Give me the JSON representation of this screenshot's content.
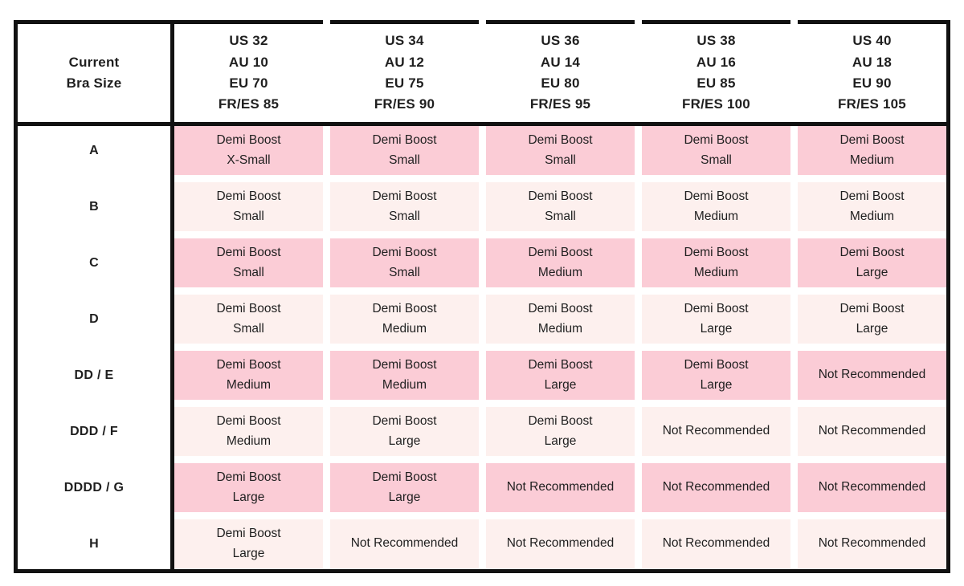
{
  "colors": {
    "border": "#111111",
    "text": "#1f1f1f",
    "row_pink": "#fbccd6",
    "row_light_pink": "#fdf0ee",
    "background": "#ffffff"
  },
  "chart_data": {
    "type": "table",
    "corner_label": "Current\nBra Size",
    "columns": [
      "US 32\nAU 10\nEU 70\nFR/ES 85",
      "US 34\nAU 12\nEU 75\nFR/ES 90",
      "US 36\nAU 14\nEU 80\nFR/ES 95",
      "US 38\nAU 16\nEU 85\nFR/ES 100",
      "US 40\nAU 18\nEU 90\nFR/ES 105"
    ],
    "rows": [
      {
        "label": "A",
        "cells": [
          "Demi Boost\nX-Small",
          "Demi Boost\nSmall",
          "Demi Boost\nSmall",
          "Demi Boost\nSmall",
          "Demi Boost\nMedium"
        ]
      },
      {
        "label": "B",
        "cells": [
          "Demi Boost\nSmall",
          "Demi Boost\nSmall",
          "Demi Boost\nSmall",
          "Demi Boost\nMedium",
          "Demi Boost\nMedium"
        ]
      },
      {
        "label": "C",
        "cells": [
          "Demi Boost\nSmall",
          "Demi Boost\nSmall",
          "Demi Boost\nMedium",
          "Demi Boost\nMedium",
          "Demi Boost\nLarge"
        ]
      },
      {
        "label": "D",
        "cells": [
          "Demi Boost\nSmall",
          "Demi Boost\nMedium",
          "Demi Boost\nMedium",
          "Demi Boost\nLarge",
          "Demi Boost\nLarge"
        ]
      },
      {
        "label": "DD / E",
        "cells": [
          "Demi Boost\nMedium",
          "Demi Boost\nMedium",
          "Demi Boost\nLarge",
          "Demi Boost\nLarge",
          "Not Recommended"
        ]
      },
      {
        "label": "DDD / F",
        "cells": [
          "Demi Boost\nMedium",
          "Demi Boost\nLarge",
          "Demi Boost\nLarge",
          "Not Recommended",
          "Not Recommended"
        ]
      },
      {
        "label": "DDDD / G",
        "cells": [
          "Demi Boost\nLarge",
          "Demi Boost\nLarge",
          "Not Recommended",
          "Not Recommended",
          "Not Recommended"
        ]
      },
      {
        "label": "H",
        "cells": [
          "Demi Boost\nLarge",
          "Not Recommended",
          "Not Recommended",
          "Not Recommended",
          "Not Recommended"
        ]
      }
    ]
  }
}
